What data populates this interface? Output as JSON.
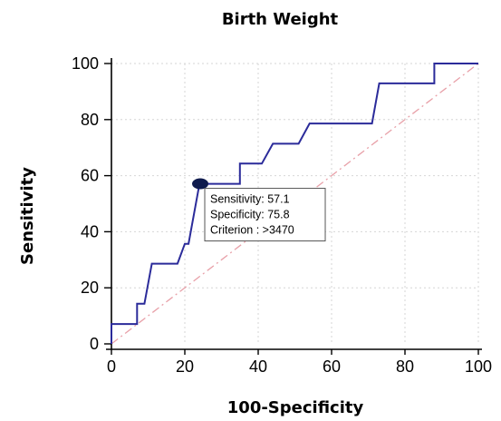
{
  "chart_data": {
    "type": "line",
    "title": "Birth Weight",
    "xlabel": "100-Specificity",
    "ylabel": "Sensitivity",
    "xlim": [
      0,
      100
    ],
    "ylim": [
      0,
      100
    ],
    "x_ticks": [
      "0",
      "20",
      "40",
      "60",
      "80",
      "100"
    ],
    "y_ticks": [
      "0",
      "20",
      "40",
      "60",
      "80",
      "100"
    ],
    "grid": true,
    "series": [
      {
        "color": "#2b2b9a",
        "points": [
          [
            0,
            0
          ],
          [
            0,
            7.1
          ],
          [
            7,
            7.1
          ],
          [
            7,
            14.3
          ],
          [
            9,
            14.3
          ],
          [
            11,
            28.6
          ],
          [
            18,
            28.6
          ],
          [
            20,
            35.7
          ],
          [
            21,
            35.7
          ],
          [
            24,
            57.1
          ],
          [
            35,
            57.1
          ],
          [
            35,
            64.3
          ],
          [
            41,
            64.3
          ],
          [
            44,
            71.4
          ],
          [
            51,
            71.4
          ],
          [
            54,
            78.6
          ],
          [
            71,
            78.6
          ],
          [
            73,
            92.9
          ],
          [
            88,
            92.9
          ],
          [
            88,
            100
          ],
          [
            100,
            100
          ]
        ]
      }
    ],
    "reference_line": {
      "style": "dash-dot",
      "color": "#e8a0a8",
      "from": [
        0,
        0
      ],
      "to": [
        100,
        100
      ]
    },
    "highlight_point": {
      "x": 24.2,
      "y": 57.1,
      "color": "#0f1b4d"
    },
    "annotations": [
      {
        "key": "sensitivity",
        "text": "Sensitivity: 57.1"
      },
      {
        "key": "specificity",
        "text": "Specificity: 75.8"
      },
      {
        "key": "criterion",
        "text": "Criterion : >3470"
      }
    ]
  }
}
